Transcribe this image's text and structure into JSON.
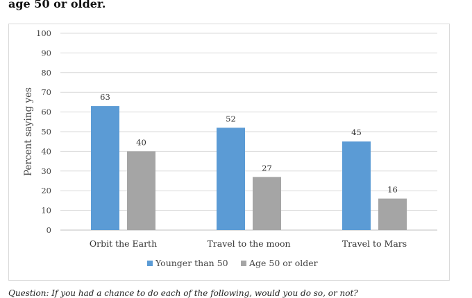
{
  "header": {
    "title": "age 50 or older."
  },
  "footer": {
    "caption": "Question: If you had a chance to do each of the following, would you do so, or not?"
  },
  "chart_data": {
    "type": "bar",
    "categories": [
      "Orbit the Earth",
      "Travel to the moon",
      "Travel to Mars"
    ],
    "series": [
      {
        "name": "Younger than 50",
        "values": [
          63,
          52,
          45
        ],
        "color": "#5b9bd5"
      },
      {
        "name": "Age 50 or older",
        "values": [
          40,
          27,
          16
        ],
        "color": "#a5a5a5"
      }
    ],
    "ylabel": "Percent saying yes",
    "ylim": [
      0,
      100
    ],
    "yticks": [
      0,
      10,
      20,
      30,
      40,
      50,
      60,
      70,
      80,
      90,
      100
    ],
    "grid": true,
    "legend": "bottom"
  }
}
